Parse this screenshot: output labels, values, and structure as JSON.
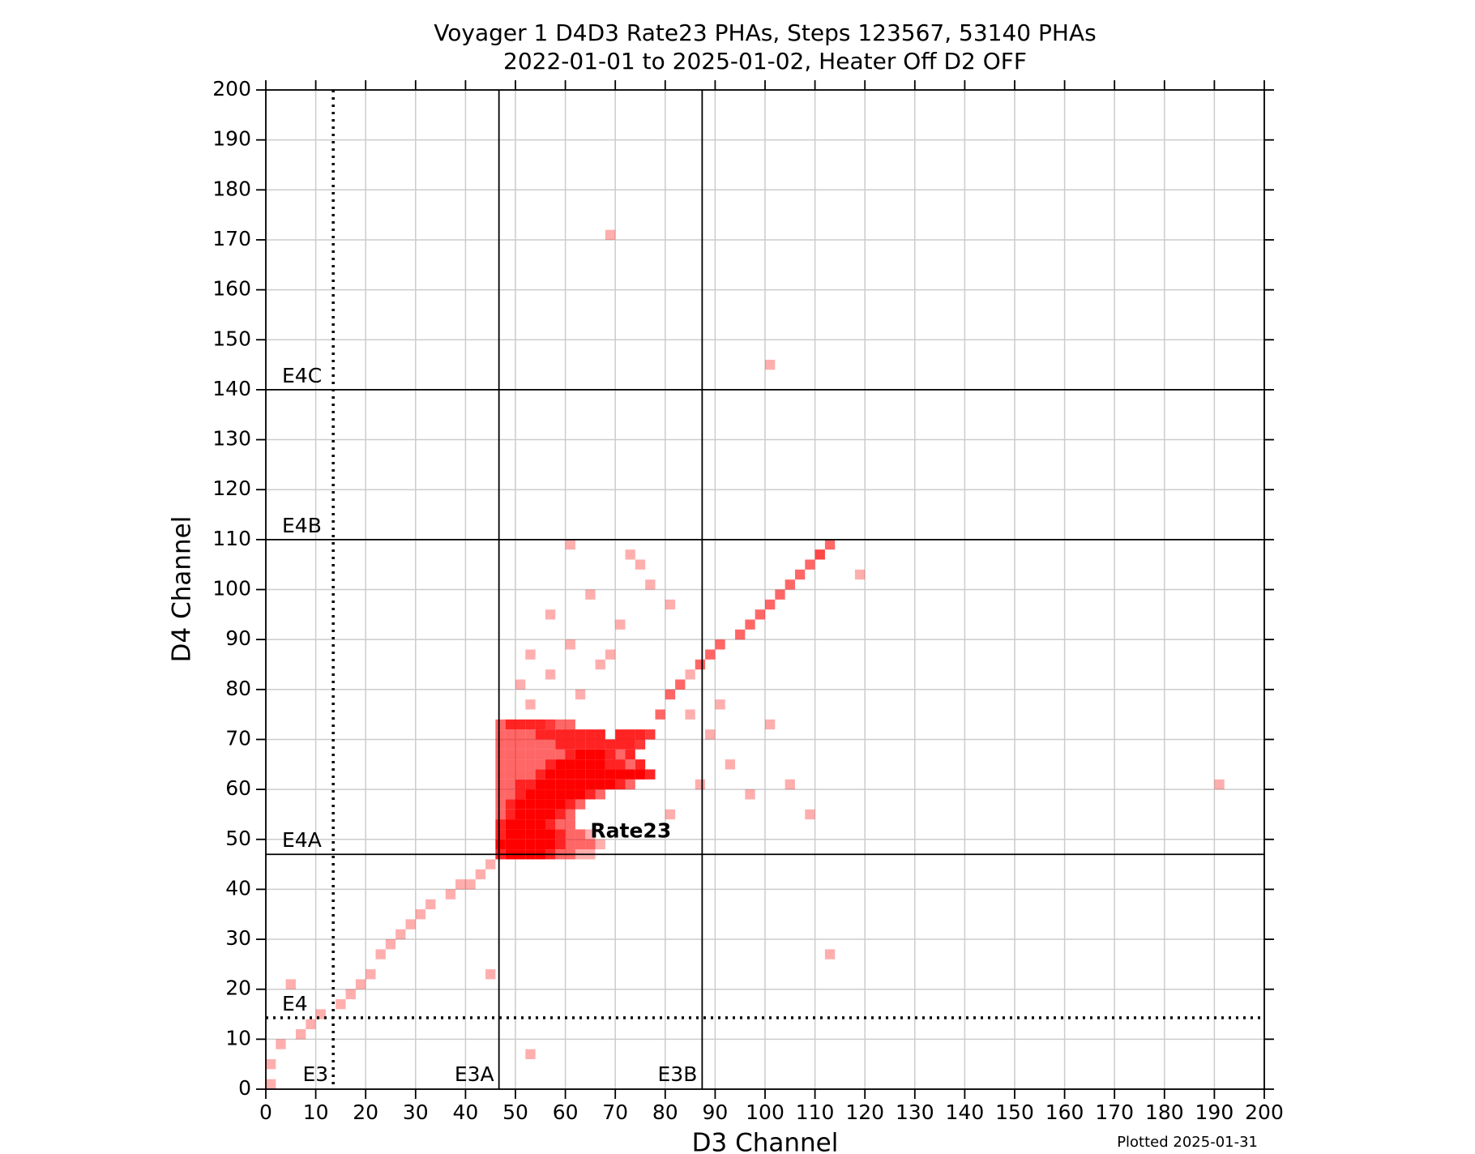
{
  "chart_data": {
    "type": "hist2d",
    "title": "Voyager 1 D4D3 Rate23 PHAs, Steps 123567, 53140 PHAs",
    "subtitle": "2022-01-01 to 2025-01-02, Heater Off D2 OFF",
    "x_label": "D3 Channel",
    "y_label": "D4 Channel",
    "note": "Plotted 2025-01-31",
    "annotation": "Rate23",
    "color": "#ff0000",
    "grid": true,
    "bin_width": 2,
    "xlim": [
      0,
      200
    ],
    "ylim": [
      0,
      200
    ],
    "xticks": [
      0,
      10,
      20,
      30,
      40,
      50,
      60,
      70,
      80,
      90,
      100,
      110,
      120,
      130,
      140,
      150,
      160,
      170,
      180,
      190,
      200
    ],
    "yticks": [
      0,
      10,
      20,
      30,
      40,
      50,
      60,
      70,
      80,
      90,
      100,
      110,
      120,
      130,
      140,
      150,
      160,
      170,
      180,
      190,
      200
    ],
    "thresholds": [
      {
        "label": "E3",
        "axis": "x",
        "value": 13.5,
        "style": "dotted"
      },
      {
        "label": "E3A",
        "axis": "x",
        "value": 46.7,
        "style": "solid"
      },
      {
        "label": "E3B",
        "axis": "x",
        "value": 87.4,
        "style": "solid"
      },
      {
        "label": "E4",
        "axis": "y",
        "value": 14.3,
        "style": "dotted"
      },
      {
        "label": "E4A",
        "axis": "y",
        "value": 47,
        "style": "solid"
      },
      {
        "label": "E4B",
        "axis": "y",
        "value": 110,
        "style": "solid"
      },
      {
        "label": "E4C",
        "axis": "y",
        "value": 140,
        "style": "solid"
      }
    ],
    "x": [
      46,
      48,
      50,
      52,
      54,
      56,
      58,
      60,
      46,
      48,
      50,
      52,
      54,
      56,
      58,
      60,
      62,
      64,
      66,
      70,
      72,
      74,
      76,
      46,
      48,
      50,
      52,
      54,
      56,
      58,
      60,
      62,
      64,
      66,
      68,
      70,
      72,
      74,
      46,
      48,
      50,
      52,
      54,
      56,
      58,
      60,
      62,
      64,
      66,
      68,
      70,
      72,
      46,
      48,
      50,
      52,
      54,
      56,
      58,
      60,
      62,
      64,
      66,
      68,
      70,
      72,
      74,
      46,
      48,
      50,
      52,
      54,
      56,
      58,
      60,
      62,
      64,
      66,
      68,
      70,
      72,
      74,
      76,
      46,
      48,
      50,
      52,
      54,
      56,
      58,
      60,
      62,
      64,
      66,
      68,
      70,
      72,
      46,
      48,
      50,
      52,
      54,
      56,
      58,
      60,
      62,
      64,
      66,
      46,
      48,
      50,
      52,
      54,
      56,
      58,
      60,
      62,
      46,
      48,
      50,
      52,
      54,
      56,
      58,
      60,
      46,
      48,
      50,
      52,
      54,
      56,
      58,
      60,
      46,
      48,
      50,
      52,
      54,
      56,
      58,
      60,
      62,
      64,
      46,
      48,
      50,
      52,
      54,
      56,
      58,
      60,
      62,
      64,
      66,
      46,
      48,
      50,
      52,
      54,
      56,
      58,
      60,
      62,
      64,
      78,
      80,
      82,
      84,
      86,
      88,
      90,
      94,
      96,
      98,
      100,
      102,
      104,
      106,
      108,
      110,
      112,
      44,
      42,
      40,
      38,
      36,
      32,
      30,
      28,
      26,
      24,
      22,
      20,
      18,
      16,
      14,
      10,
      8,
      6,
      2,
      0,
      0,
      4,
      44,
      50,
      52,
      56,
      60,
      64,
      66,
      70,
      72,
      76,
      80,
      84,
      88,
      90,
      92,
      96,
      100,
      104,
      108,
      110,
      118,
      68,
      100,
      190,
      112,
      52,
      60,
      74,
      86,
      80,
      52,
      56,
      68,
      62
    ],
    "y": [
      72,
      72,
      72,
      72,
      72,
      72,
      72,
      72,
      70,
      70,
      70,
      70,
      70,
      70,
      70,
      70,
      70,
      70,
      70,
      70,
      70,
      70,
      70,
      68,
      68,
      68,
      68,
      68,
      68,
      68,
      68,
      68,
      68,
      68,
      68,
      68,
      68,
      68,
      66,
      66,
      66,
      66,
      66,
      66,
      66,
      66,
      66,
      66,
      66,
      66,
      66,
      66,
      64,
      64,
      64,
      64,
      64,
      64,
      64,
      64,
      64,
      64,
      64,
      64,
      64,
      64,
      64,
      62,
      62,
      62,
      62,
      62,
      62,
      62,
      62,
      62,
      62,
      62,
      62,
      62,
      62,
      62,
      62,
      60,
      60,
      60,
      60,
      60,
      60,
      60,
      60,
      60,
      60,
      60,
      60,
      60,
      60,
      58,
      58,
      58,
      58,
      58,
      58,
      58,
      58,
      58,
      58,
      58,
      56,
      56,
      56,
      56,
      56,
      56,
      56,
      56,
      56,
      54,
      54,
      54,
      54,
      54,
      54,
      54,
      54,
      52,
      52,
      52,
      52,
      52,
      52,
      52,
      52,
      50,
      50,
      50,
      50,
      50,
      50,
      50,
      50,
      50,
      50,
      48,
      48,
      48,
      48,
      48,
      48,
      48,
      48,
      48,
      48,
      48,
      46,
      46,
      46,
      46,
      46,
      46,
      46,
      46,
      46,
      46,
      74,
      78,
      80,
      82,
      84,
      86,
      88,
      90,
      92,
      94,
      96,
      98,
      100,
      102,
      104,
      106,
      108,
      44,
      42,
      40,
      40,
      38,
      36,
      34,
      32,
      30,
      28,
      26,
      22,
      20,
      18,
      16,
      14,
      12,
      10,
      8,
      4,
      0,
      20,
      22,
      80,
      86,
      94,
      88,
      98,
      84,
      92,
      106,
      100,
      96,
      74,
      70,
      76,
      64,
      58,
      72,
      60,
      54,
      106,
      102,
      170,
      144,
      60,
      26,
      6,
      108,
      104,
      60,
      54,
      76,
      82,
      86,
      78
    ],
    "counts": [
      8,
      30,
      30,
      30,
      30,
      20,
      8,
      8,
      8,
      8,
      8,
      8,
      30,
      30,
      30,
      30,
      30,
      30,
      30,
      30,
      30,
      30,
      20,
      8,
      8,
      8,
      8,
      8,
      8,
      30,
      30,
      30,
      30,
      30,
      30,
      30,
      30,
      20,
      8,
      8,
      8,
      8,
      8,
      8,
      8,
      30,
      60,
      60,
      60,
      30,
      8,
      30,
      8,
      8,
      8,
      8,
      8,
      30,
      60,
      60,
      60,
      60,
      60,
      30,
      30,
      8,
      30,
      8,
      8,
      8,
      8,
      30,
      60,
      60,
      60,
      60,
      60,
      60,
      60,
      60,
      60,
      60,
      30,
      8,
      8,
      30,
      30,
      60,
      60,
      60,
      60,
      60,
      60,
      60,
      60,
      30,
      8,
      8,
      8,
      30,
      60,
      60,
      60,
      60,
      60,
      60,
      30,
      8,
      8,
      30,
      60,
      60,
      60,
      60,
      60,
      30,
      8,
      8,
      30,
      60,
      60,
      60,
      60,
      30,
      8,
      30,
      60,
      60,
      60,
      60,
      30,
      8,
      8,
      30,
      60,
      60,
      60,
      60,
      60,
      30,
      8,
      8,
      2,
      60,
      60,
      60,
      60,
      60,
      60,
      30,
      8,
      8,
      8,
      2,
      30,
      60,
      60,
      60,
      60,
      30,
      8,
      8,
      2,
      2,
      8,
      8,
      8,
      2,
      8,
      8,
      8,
      8,
      8,
      8,
      8,
      8,
      8,
      8,
      8,
      8,
      8,
      2,
      2,
      2,
      2,
      2,
      2,
      2,
      2,
      2,
      2,
      2,
      2,
      2,
      2,
      2,
      2,
      2,
      2,
      2,
      2,
      2,
      2,
      2,
      2,
      2,
      2,
      2,
      2,
      2,
      2,
      2,
      2,
      2,
      2,
      2,
      2,
      2,
      2,
      2,
      2,
      2,
      2,
      2,
      2,
      2,
      2,
      2,
      2,
      2,
      2,
      2,
      2,
      2,
      2,
      2,
      2
    ]
  }
}
